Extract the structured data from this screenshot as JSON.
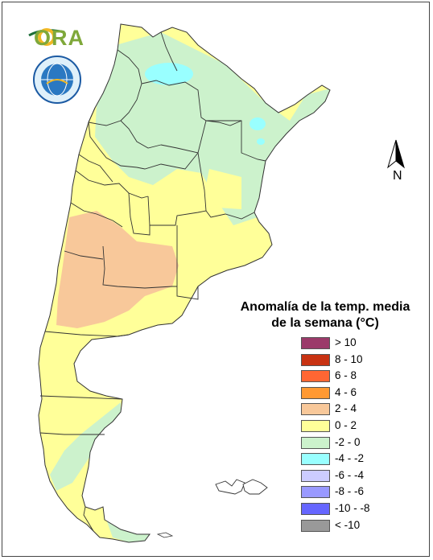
{
  "logo": {
    "text": "ORA"
  },
  "north_arrow": {
    "label": "N"
  },
  "legend": {
    "title_line1": "Anomalía de la temp. media",
    "title_line2": "de la semana (°C)",
    "items": [
      {
        "label": "> 10",
        "color": "#9b3a6a"
      },
      {
        "label": "8 - 10",
        "color": "#c83212"
      },
      {
        "label": "6 - 8",
        "color": "#ff6633"
      },
      {
        "label": "4 - 6",
        "color": "#ff9933"
      },
      {
        "label": "2 - 4",
        "color": "#f8c89a"
      },
      {
        "label": "0 - 2",
        "color": "#ffff99"
      },
      {
        "label": "-2 - 0",
        "color": "#ccf2cc"
      },
      {
        "label": "-4 - -2",
        "color": "#99ffff"
      },
      {
        "label": "-6 - -4",
        "color": "#ccccff"
      },
      {
        "label": "-8 - -6",
        "color": "#9999ff"
      },
      {
        "label": "-10 - -8",
        "color": "#6666ff"
      },
      {
        "label": "< -10",
        "color": "#999999"
      }
    ]
  }
}
